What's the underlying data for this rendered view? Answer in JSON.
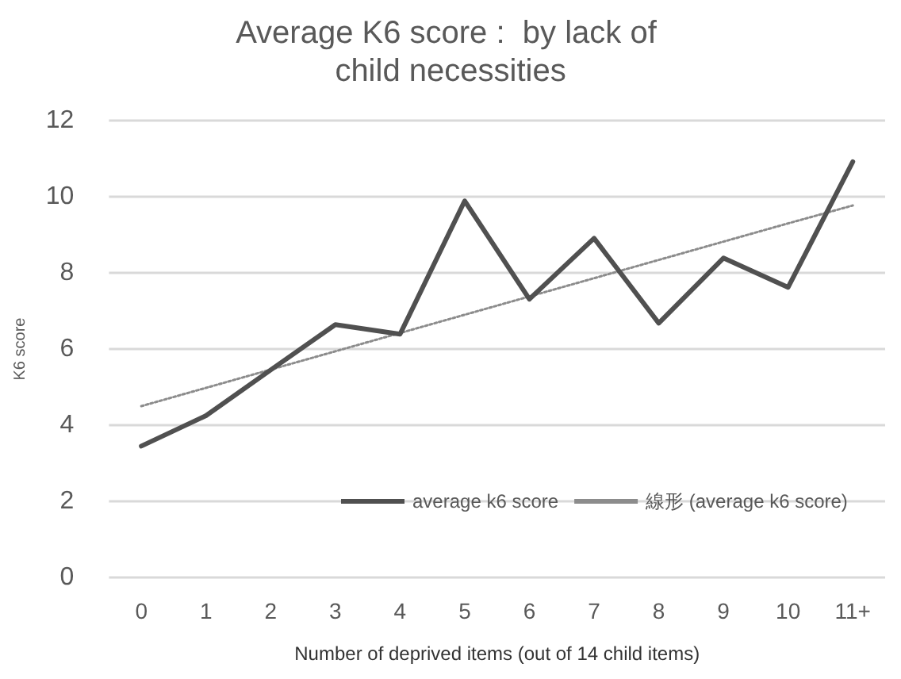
{
  "chart_data": {
    "type": "line",
    "title": "Average K6 score :  by lack of child necessities",
    "xlabel": "Number of deprived items (out of 14 child items)",
    "ylabel": "K6 score",
    "categories": [
      "0",
      "1",
      "2",
      "3",
      "4",
      "5",
      "6",
      "7",
      "8",
      "9",
      "10",
      "11+"
    ],
    "series": [
      {
        "name": "average k6 score",
        "color": "#505050",
        "values": [
          3.45,
          4.25,
          5.45,
          6.64,
          6.39,
          9.89,
          7.31,
          8.91,
          6.68,
          8.39,
          7.62,
          10.92
        ]
      },
      {
        "name": "線形 (average k6 score)",
        "color": "#8c8c8c",
        "line_style": "dotted",
        "values": [
          4.5,
          4.98,
          5.46,
          5.94,
          6.42,
          6.9,
          7.38,
          7.86,
          8.34,
          8.82,
          9.3,
          9.77
        ]
      }
    ],
    "ylim": [
      0,
      12
    ],
    "yticks": [
      0,
      2,
      4,
      6,
      8,
      10,
      12
    ],
    "grid": "y",
    "legend": "bottom",
    "marker": "none"
  }
}
